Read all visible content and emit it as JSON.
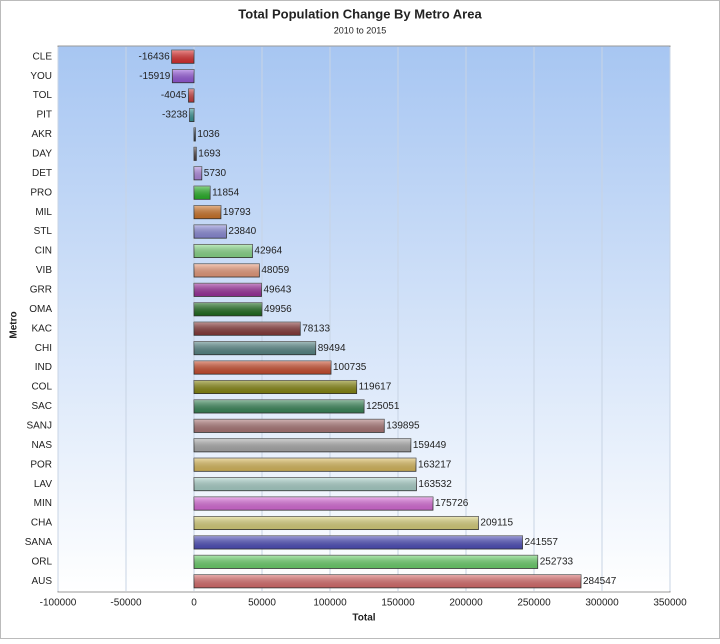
{
  "chart_data": {
    "type": "bar",
    "orientation": "horizontal",
    "title": "Total Population Change By Metro Area",
    "subtitle": "2010 to 2015",
    "x_label": "Total",
    "y_label": "Metro",
    "categories": [
      "CLE",
      "YOU",
      "TOL",
      "PIT",
      "AKR",
      "DAY",
      "DET",
      "PRO",
      "MIL",
      "STL",
      "CIN",
      "VIB",
      "GRR",
      "OMA",
      "KAC",
      "CHI",
      "IND",
      "COL",
      "SAC",
      "SANJ",
      "NAS",
      "POR",
      "LAV",
      "MIN",
      "CHA",
      "SANA",
      "ORL",
      "AUS"
    ],
    "values": [
      -16436,
      -15919,
      -4045,
      -3238,
      1036,
      1693,
      5730,
      11854,
      19793,
      23840,
      42964,
      48059,
      49643,
      49956,
      78133,
      89494,
      100735,
      119617,
      125051,
      139895,
      159449,
      163217,
      163532,
      175726,
      209115,
      241557,
      252733,
      284547
    ],
    "colors": [
      "#e03030",
      "#9a5ce0",
      "#d04040",
      "#3a9a9a",
      "#334455",
      "#554444",
      "#b58ee6",
      "#2ab82a",
      "#d4782a",
      "#9090e0",
      "#8ee08e",
      "#f0a080",
      "#a030a0",
      "#1f6e1f",
      "#8a3a3a",
      "#5a8a8a",
      "#d05030",
      "#8a8a10",
      "#3a8a5a",
      "#b07a7a",
      "#b0b0b0",
      "#e0c060",
      "#b0d8d0",
      "#e070e0",
      "#e0d880",
      "#5050c0",
      "#70d870",
      "#e07070"
    ],
    "xlim": [
      -100000,
      350000
    ],
    "xticks": [
      -100000,
      -50000,
      0,
      50000,
      100000,
      150000,
      200000,
      250000,
      300000,
      350000
    ],
    "grid": true
  }
}
